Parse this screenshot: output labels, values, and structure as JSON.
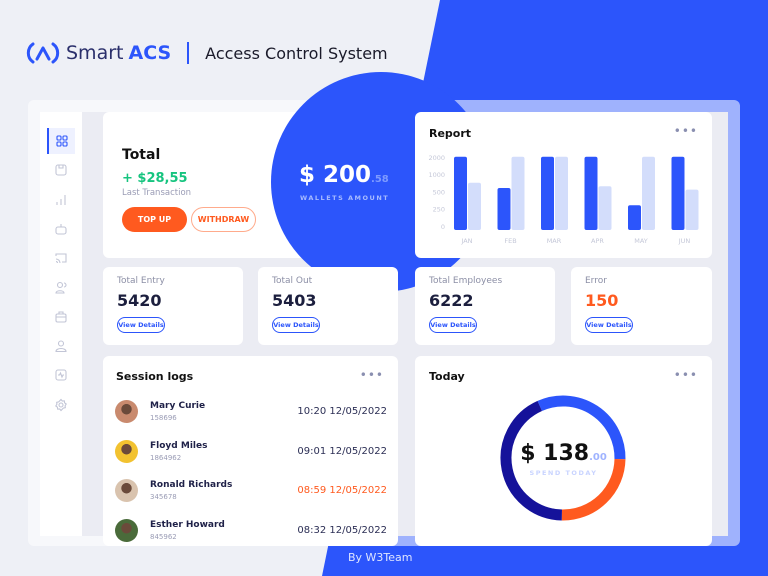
{
  "brand": {
    "name": "Smart",
    "name_accent": "ACS",
    "subtitle": "Access Control System"
  },
  "sidebar": {
    "items": [
      {
        "icon": "grid-icon",
        "active": true
      },
      {
        "icon": "save-icon"
      },
      {
        "icon": "bar-chart-icon"
      },
      {
        "icon": "robot-icon"
      },
      {
        "icon": "cast-icon"
      },
      {
        "icon": "users-icon"
      },
      {
        "icon": "briefcase-icon"
      },
      {
        "icon": "user-icon"
      },
      {
        "icon": "activity-icon"
      },
      {
        "icon": "settings-icon"
      }
    ]
  },
  "total": {
    "title": "Total",
    "change": "+ $28,55",
    "change_label": "Last Transaction",
    "top_up": "TOP UP",
    "withdraw": "WITHDRAW",
    "wallet_amount": "$ 200",
    "wallet_cents": ".58",
    "wallet_label": "WALLETS AMOUNT"
  },
  "report": {
    "title": "Report",
    "menu": "•••"
  },
  "chart_data": {
    "type": "bar",
    "title": "Report",
    "categories": [
      "JAN",
      "FEB",
      "MAR",
      "APR",
      "MAY",
      "JUN"
    ],
    "yticks": [
      "0",
      "250",
      "500",
      "1000",
      "2000"
    ],
    "series": [
      {
        "values": [
          2000,
          600,
          2000,
          2000,
          300,
          2000
        ],
        "color": "#2c55fb"
      },
      {
        "values": [
          750,
          2000,
          2000,
          650,
          2000,
          550
        ],
        "color": "#d3ddfb"
      }
    ],
    "grid": false
  },
  "stats": [
    {
      "label": "Total Entry",
      "value": "5420",
      "button": "View Details"
    },
    {
      "label": "Total Out",
      "value": "5403",
      "button": "View Details"
    },
    {
      "label": "Total Employees",
      "value": "6222",
      "button": "View Details"
    },
    {
      "label": "Error",
      "value": "150",
      "button": "View Details",
      "color": "#ff5a1f"
    }
  ],
  "sessions": {
    "title": "Session logs",
    "menu": "•••",
    "items": [
      {
        "name": "Mary Curie",
        "id": "158696",
        "time": "10:20 12/05/2022"
      },
      {
        "name": "Floyd Miles",
        "id": "1864962",
        "time": "09:01 12/05/2022"
      },
      {
        "name": "Ronald Richards",
        "id": "345678",
        "time": "08:59 12/05/2022",
        "highlight": true
      },
      {
        "name": "Esther Howard",
        "id": "845962",
        "time": "08:32 12/05/2022"
      }
    ]
  },
  "today": {
    "title": "Today",
    "menu": "•••",
    "amount": "$ 138",
    "cents": ".00",
    "label": "SPEND TODAY",
    "segments": [
      {
        "share": 32,
        "color": "#2c55fb"
      },
      {
        "share": 25,
        "color": "#ff5a1f"
      },
      {
        "share": 43,
        "color": "#15129a"
      }
    ]
  },
  "footer": "By W3Team",
  "colors": {
    "accent": "#2c55fb",
    "orange": "#ff5a1f",
    "green": "#16c47f"
  }
}
